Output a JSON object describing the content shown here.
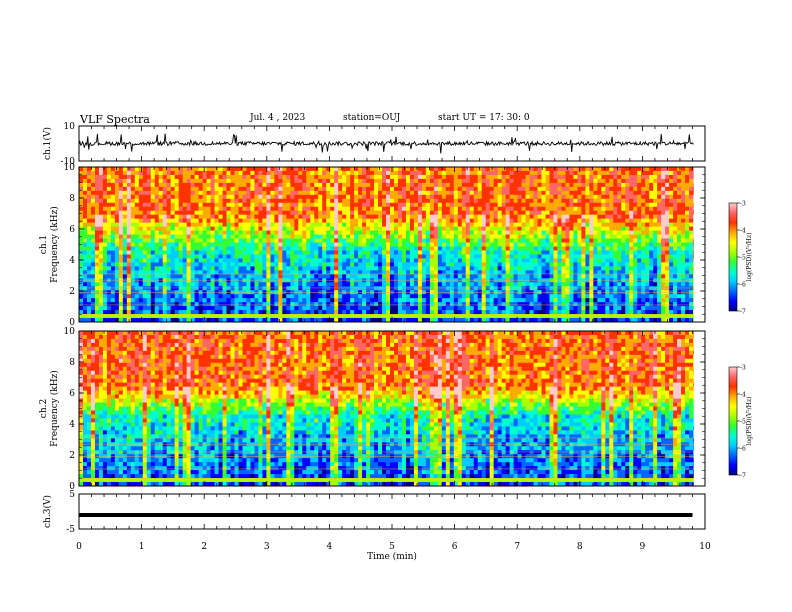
{
  "header": {
    "title": "VLF Spectra",
    "date": "Jul. 4 , 2023",
    "station": "station=OUJ",
    "start": "start UT = 17: 30: 0"
  },
  "colors": {
    "colormap": [
      "#00007f",
      "#0000ff",
      "#0066ff",
      "#00ccff",
      "#00ffcc",
      "#33ff33",
      "#aaff00",
      "#ffff00",
      "#ffaa00",
      "#ff3300",
      "#ff6666",
      "#ffcccc"
    ],
    "trace": "#000000"
  },
  "chart_data": [
    {
      "type": "line",
      "ylabel": "ch.1(V)",
      "ylim": [
        -10,
        10
      ],
      "y_tick_labels": [
        "10",
        "-10"
      ],
      "xlim": [
        0,
        10
      ],
      "description_values": {
        "baseline": 0,
        "spike_max": 8,
        "spike_min": -8
      }
    },
    {
      "type": "heatmap",
      "ylabel": "ch.1 Frequency (kHz)",
      "ylim": [
        0,
        10
      ],
      "y_tick_labels": [
        "0",
        "2",
        "4",
        "6",
        "8",
        "10"
      ],
      "xlim": [
        0,
        10
      ],
      "colorbar": {
        "label": "log(PSD)(V²/Hz)",
        "range": [
          -7,
          -3
        ],
        "tick_labels": [
          "-3",
          "-4",
          "-5",
          "-6",
          "-7"
        ]
      },
      "approx_boundary_khz": {
        "low_power_below": 4.5,
        "high_power_above": 7
      }
    },
    {
      "type": "heatmap",
      "ylabel": "ch.2 Frequency (kHz)",
      "ylim": [
        0,
        10
      ],
      "y_tick_labels": [
        "0",
        "2",
        "4",
        "6",
        "8",
        "10"
      ],
      "xlim": [
        0,
        10
      ],
      "colorbar": {
        "label": "log(PSD)(V²/Hz)",
        "range": [
          -7,
          -3
        ],
        "tick_labels": [
          "-3",
          "-4",
          "-5",
          "-6",
          "-7"
        ]
      },
      "approx_boundary_khz": {
        "low_power_below": 4.5,
        "high_power_above": 6.5
      }
    },
    {
      "type": "line",
      "ylabel": "ch.3(V)",
      "ylim": [
        -5,
        5
      ],
      "y_tick_labels": [
        "5",
        "-5"
      ],
      "xlim": [
        0,
        10
      ],
      "xlabel": "Time (min)",
      "x_tick_labels": [
        "0",
        "1",
        "2",
        "3",
        "4",
        "5",
        "6",
        "7",
        "8",
        "9",
        "10"
      ],
      "values": {
        "x": [
          0,
          9.8
        ],
        "y": [
          -1,
          -1
        ]
      }
    }
  ]
}
